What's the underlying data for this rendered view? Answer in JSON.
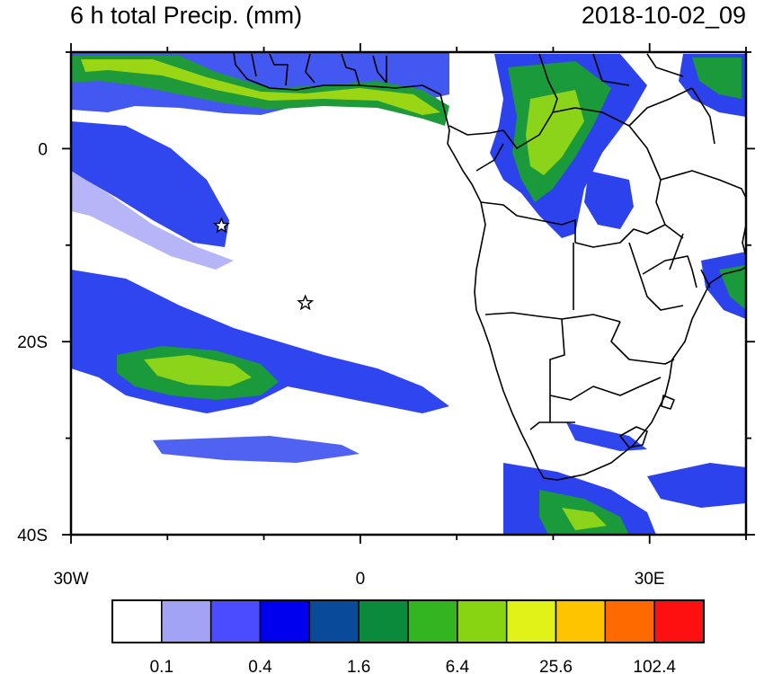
{
  "header": {
    "title": "6 h total Precip. (mm)",
    "datetime": "2018-10-02_09"
  },
  "map": {
    "lon_range": [
      -30,
      40
    ],
    "lat_range": [
      -40,
      10
    ],
    "lat_labels": [
      {
        "lat": 0,
        "text": "0"
      },
      {
        "lat": -20,
        "text": "20S"
      },
      {
        "lat": -40,
        "text": "40S"
      }
    ],
    "lon_labels": [
      {
        "lon": -30,
        "text": "30W"
      },
      {
        "lon": 0,
        "text": "0"
      },
      {
        "lon": 30,
        "text": "30E"
      }
    ],
    "markers": [
      {
        "name": "star",
        "lon": -14.4,
        "lat": -8.0
      },
      {
        "name": "star",
        "lon": -5.7,
        "lat": -16.0
      }
    ],
    "colors": {
      "ocean_rain_light": "#3c4cf4",
      "rain_green": "#1a9a3a",
      "rain_yellowgreen": "#8cd41a",
      "coast": "#000000"
    }
  },
  "colorbar": {
    "colors": [
      "#ffffff",
      "#a3a3f6",
      "#4b4bff",
      "#0000ee",
      "#0a4a9a",
      "#0a8a3a",
      "#33b522",
      "#88d412",
      "#e0f218",
      "#ffc400",
      "#ff6a00",
      "#ff1010"
    ],
    "labels": [
      "0.1",
      "0.4",
      "1.6",
      "6.4",
      "25.6",
      "102.4"
    ]
  }
}
